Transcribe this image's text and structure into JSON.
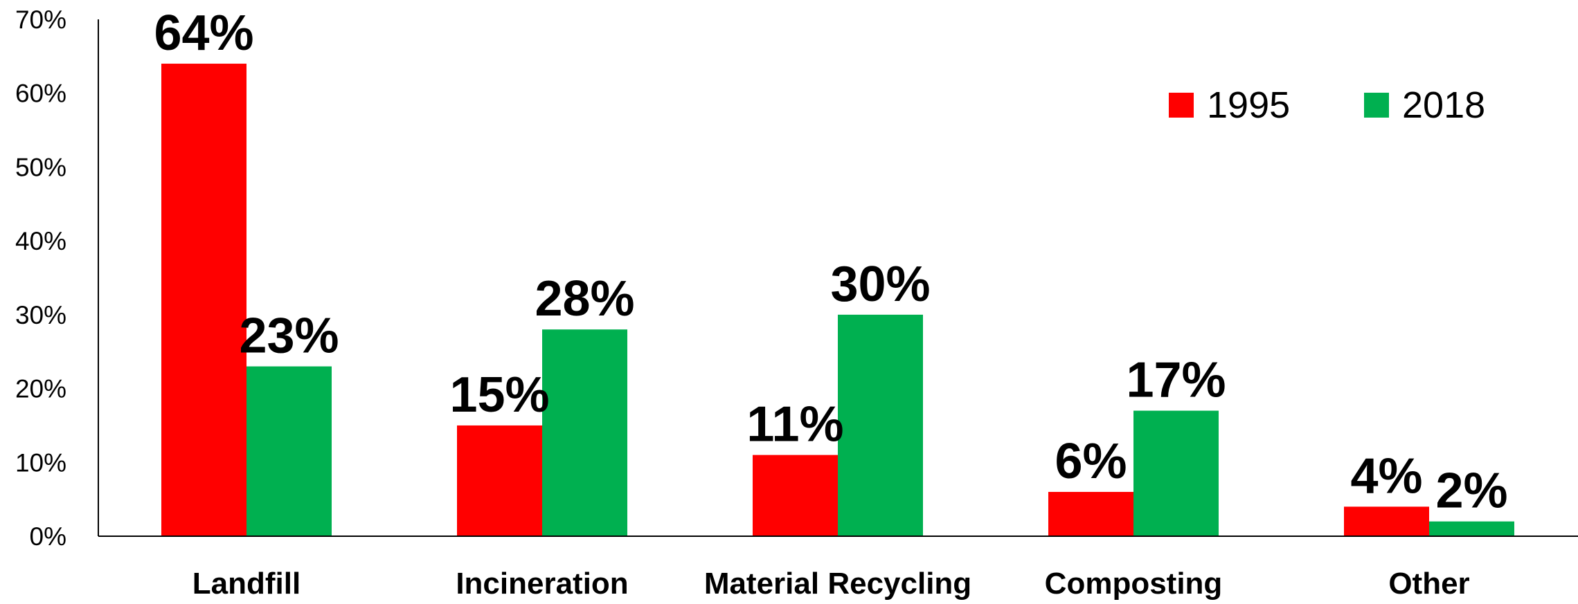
{
  "chart_data": {
    "type": "bar",
    "categories": [
      "Landfill",
      "Incineration",
      "Material Recycling",
      "Composting",
      "Other"
    ],
    "series": [
      {
        "name": "1995",
        "color": "#ff0000",
        "values": [
          64,
          15,
          11,
          6,
          4
        ]
      },
      {
        "name": "2018",
        "color": "#00b050",
        "values": [
          23,
          28,
          30,
          17,
          2
        ]
      }
    ],
    "ylim": [
      0,
      70
    ],
    "yticks": [
      0,
      10,
      20,
      30,
      40,
      50,
      60,
      70
    ],
    "value_suffix": "%",
    "grid": false,
    "legend_position": "top-right"
  }
}
